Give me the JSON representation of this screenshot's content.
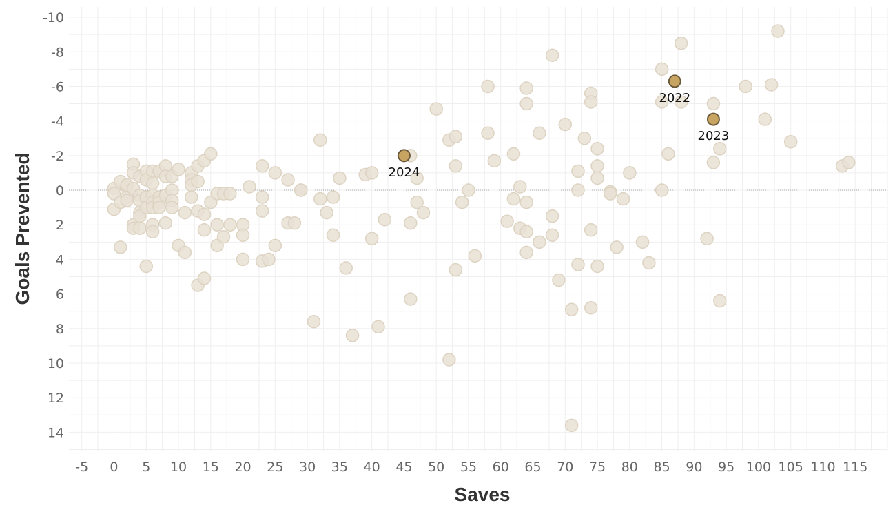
{
  "chart_data": {
    "type": "scatter",
    "xlabel": "Saves",
    "ylabel": "Goals Prevented",
    "xlim": [
      -7,
      120
    ],
    "ylim": [
      -10.6,
      15.1
    ],
    "y_inverted": true,
    "grid": true,
    "x_ticks": [
      -5,
      0,
      5,
      10,
      15,
      20,
      25,
      30,
      35,
      40,
      45,
      50,
      55,
      60,
      65,
      70,
      75,
      80,
      85,
      90,
      95,
      100,
      105,
      110,
      115
    ],
    "y_ticks": [
      -10,
      -8,
      -6,
      -4,
      -2,
      0,
      2,
      4,
      6,
      8,
      10,
      12,
      14
    ],
    "colors": {
      "background_points": "#e9e1d3",
      "highlight_points": "#c8a462",
      "highlight_stroke": "#6b5a3a",
      "zero_line": "#aaaaaa"
    },
    "series": [
      {
        "highlight": false,
        "points": [
          [
            0,
            -0.1
          ],
          [
            0,
            0.2
          ],
          [
            0,
            1.1
          ],
          [
            1,
            -0.5
          ],
          [
            1,
            0.7
          ],
          [
            1,
            3.3
          ],
          [
            2,
            -0.2
          ],
          [
            2,
            0.4
          ],
          [
            2,
            0.6
          ],
          [
            2,
            -0.3
          ],
          [
            3,
            -1.5
          ],
          [
            3,
            -1.0
          ],
          [
            3,
            -0.1
          ],
          [
            3,
            2.0
          ],
          [
            3,
            2.2
          ],
          [
            4,
            -0.8
          ],
          [
            4,
            0.3
          ],
          [
            4,
            0.6
          ],
          [
            4,
            1.3
          ],
          [
            4,
            1.5
          ],
          [
            4,
            2.2
          ],
          [
            5,
            -1.1
          ],
          [
            5,
            -0.6
          ],
          [
            5,
            0.4
          ],
          [
            5,
            1.0
          ],
          [
            5,
            4.4
          ],
          [
            6,
            -1.1
          ],
          [
            6,
            -0.4
          ],
          [
            6,
            0.3
          ],
          [
            6,
            0.7
          ],
          [
            6,
            1.0
          ],
          [
            6,
            2.0
          ],
          [
            6,
            2.4
          ],
          [
            7,
            -1.1
          ],
          [
            7,
            0.4
          ],
          [
            7,
            0.7
          ],
          [
            7,
            1.0
          ],
          [
            8,
            -1.4
          ],
          [
            8,
            -0.8
          ],
          [
            8,
            0.3
          ],
          [
            8,
            1.9
          ],
          [
            9,
            -0.8
          ],
          [
            9,
            0.0
          ],
          [
            9,
            0.6
          ],
          [
            9,
            1.0
          ],
          [
            10,
            -1.2
          ],
          [
            10,
            3.2
          ],
          [
            11,
            1.3
          ],
          [
            11,
            3.6
          ],
          [
            12,
            -1.0
          ],
          [
            12,
            -0.6
          ],
          [
            12,
            0.4
          ],
          [
            12,
            -0.3
          ],
          [
            13,
            -1.4
          ],
          [
            13,
            -0.5
          ],
          [
            13,
            1.2
          ],
          [
            13,
            5.5
          ],
          [
            14,
            -1.7
          ],
          [
            14,
            1.4
          ],
          [
            14,
            2.3
          ],
          [
            14,
            5.1
          ],
          [
            15,
            -2.1
          ],
          [
            15,
            0.7
          ],
          [
            16,
            0.2
          ],
          [
            16,
            2.0
          ],
          [
            16,
            3.2
          ],
          [
            17,
            0.2
          ],
          [
            17,
            2.7
          ],
          [
            18,
            0.2
          ],
          [
            18,
            2.0
          ],
          [
            20,
            2.0
          ],
          [
            20,
            2.6
          ],
          [
            20,
            4.0
          ],
          [
            21,
            -0.2
          ],
          [
            23,
            -1.4
          ],
          [
            23,
            0.4
          ],
          [
            23,
            1.2
          ],
          [
            23,
            4.1
          ],
          [
            24,
            4.0
          ],
          [
            25,
            -1.0
          ],
          [
            25,
            3.2
          ],
          [
            27,
            -0.6
          ],
          [
            27,
            1.9
          ],
          [
            28,
            1.9
          ],
          [
            29,
            0.0
          ],
          [
            29,
            0.0
          ],
          [
            31,
            7.6
          ],
          [
            32,
            -2.9
          ],
          [
            32,
            0.5
          ],
          [
            33,
            1.3
          ],
          [
            34,
            0.4
          ],
          [
            34,
            2.6
          ],
          [
            35,
            -0.7
          ],
          [
            36,
            4.5
          ],
          [
            37,
            8.4
          ],
          [
            39,
            -0.9
          ],
          [
            40,
            -1.0
          ],
          [
            40,
            2.8
          ],
          [
            41,
            7.9
          ],
          [
            42,
            1.7
          ],
          [
            46,
            -2.0
          ],
          [
            46,
            1.9
          ],
          [
            46,
            6.3
          ],
          [
            47,
            -0.7
          ],
          [
            47,
            0.7
          ],
          [
            48,
            1.3
          ],
          [
            50,
            -4.7
          ],
          [
            52,
            -2.9
          ],
          [
            52,
            9.8
          ],
          [
            53,
            -3.1
          ],
          [
            53,
            -1.4
          ],
          [
            53,
            4.6
          ],
          [
            54,
            0.7
          ],
          [
            55,
            0.0
          ],
          [
            56,
            3.8
          ],
          [
            58,
            -6.0
          ],
          [
            58,
            -3.3
          ],
          [
            59,
            -1.7
          ],
          [
            61,
            1.8
          ],
          [
            62,
            -2.1
          ],
          [
            62,
            0.5
          ],
          [
            63,
            -0.2
          ],
          [
            63,
            2.2
          ],
          [
            64,
            -5.9
          ],
          [
            64,
            -5.0
          ],
          [
            64,
            0.7
          ],
          [
            64,
            2.4
          ],
          [
            64,
            3.6
          ],
          [
            66,
            -3.3
          ],
          [
            66,
            3.0
          ],
          [
            68,
            -7.8
          ],
          [
            68,
            1.5
          ],
          [
            68,
            2.6
          ],
          [
            69,
            5.2
          ],
          [
            70,
            -3.8
          ],
          [
            71,
            6.9
          ],
          [
            71,
            13.6
          ],
          [
            72,
            -1.1
          ],
          [
            72,
            0.0
          ],
          [
            72,
            4.3
          ],
          [
            73,
            -3.0
          ],
          [
            74,
            -5.6
          ],
          [
            74,
            -5.1
          ],
          [
            74,
            2.3
          ],
          [
            74,
            6.8
          ],
          [
            75,
            -2.4
          ],
          [
            75,
            -1.4
          ],
          [
            75,
            -0.7
          ],
          [
            75,
            4.4
          ],
          [
            77,
            0.1
          ],
          [
            77,
            0.2
          ],
          [
            78,
            3.3
          ],
          [
            79,
            0.5
          ],
          [
            80,
            -1.0
          ],
          [
            82,
            3.0
          ],
          [
            83,
            4.2
          ],
          [
            85,
            -7.0
          ],
          [
            85,
            -5.1
          ],
          [
            85,
            0.0
          ],
          [
            86,
            -2.1
          ],
          [
            88,
            -8.5
          ],
          [
            88,
            -5.1
          ],
          [
            92,
            2.8
          ],
          [
            93,
            -5.0
          ],
          [
            93,
            -1.6
          ],
          [
            94,
            -2.4
          ],
          [
            94,
            6.4
          ],
          [
            98,
            -6.0
          ],
          [
            101,
            -4.1
          ],
          [
            102,
            -6.1
          ],
          [
            103,
            -9.2
          ],
          [
            105,
            -2.8
          ],
          [
            113,
            -1.4
          ],
          [
            114,
            -1.6
          ]
        ]
      },
      {
        "highlight": true,
        "points": [
          {
            "x": 87,
            "y": -6.3,
            "label": "2022",
            "label_pos": "below"
          },
          {
            "x": 93,
            "y": -4.1,
            "label": "2023",
            "label_pos": "below"
          },
          {
            "x": 45,
            "y": -2.0,
            "label": "2024",
            "label_pos": "below"
          }
        ]
      }
    ]
  }
}
